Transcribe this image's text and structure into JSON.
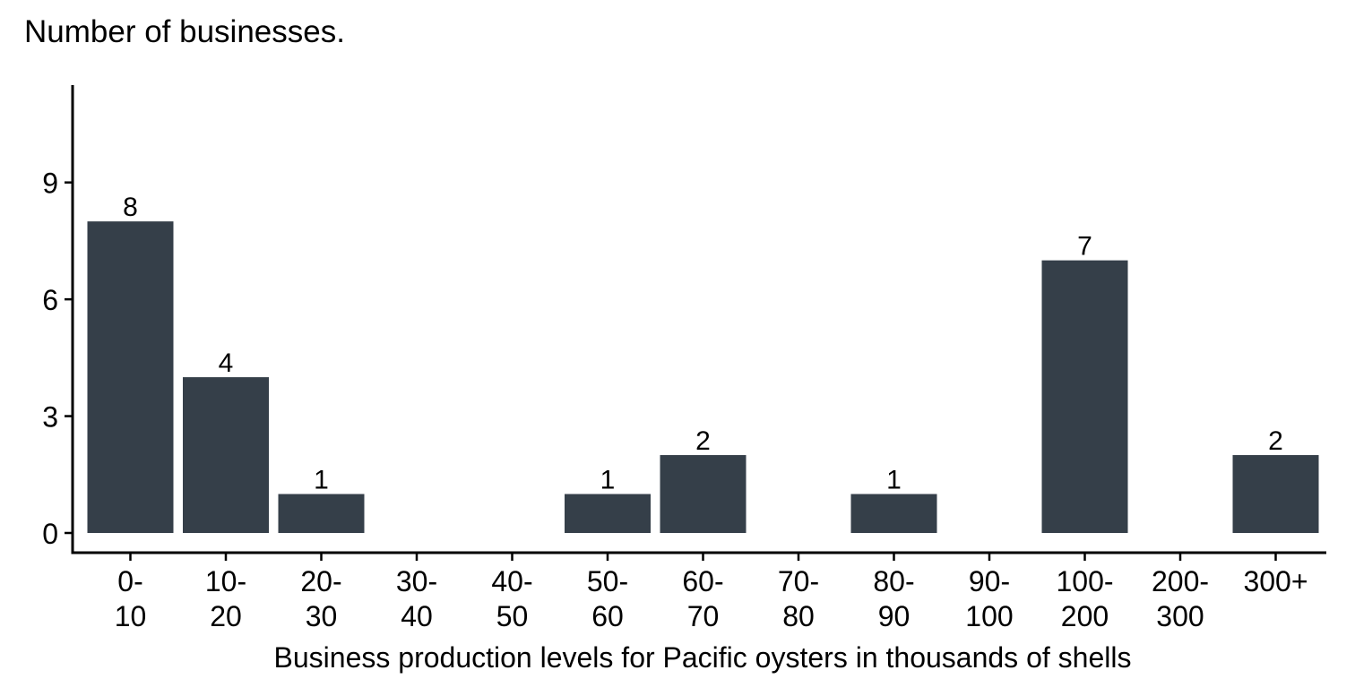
{
  "chart_data": {
    "type": "bar",
    "title": "Number of businesses.",
    "xlabel": "Business production levels for Pacific oysters in thousands of shells",
    "ylabel": "",
    "categories": [
      [
        "0-",
        "10"
      ],
      [
        "10-",
        "20"
      ],
      [
        "20-",
        "30"
      ],
      [
        "30-",
        "40"
      ],
      [
        "40-",
        "50"
      ],
      [
        "50-",
        "60"
      ],
      [
        "60-",
        "70"
      ],
      [
        "70-",
        "80"
      ],
      [
        "80-",
        "90"
      ],
      [
        "90-",
        "100"
      ],
      [
        "100-",
        "200"
      ],
      [
        "200-",
        "300"
      ],
      [
        "300+"
      ]
    ],
    "values": [
      8,
      4,
      1,
      0,
      0,
      1,
      2,
      0,
      1,
      0,
      7,
      0,
      2
    ],
    "data_labels": [
      "8",
      "4",
      "1",
      "",
      "",
      "1",
      "2",
      "",
      "1",
      "",
      "7",
      "",
      "2"
    ],
    "yticks": [
      0,
      3,
      6,
      9
    ],
    "ylim": [
      0,
      11.5
    ],
    "grid": false,
    "legend": "none",
    "colors": {
      "bar": "#353f49",
      "axis": "#000000",
      "text": "#000000"
    }
  }
}
